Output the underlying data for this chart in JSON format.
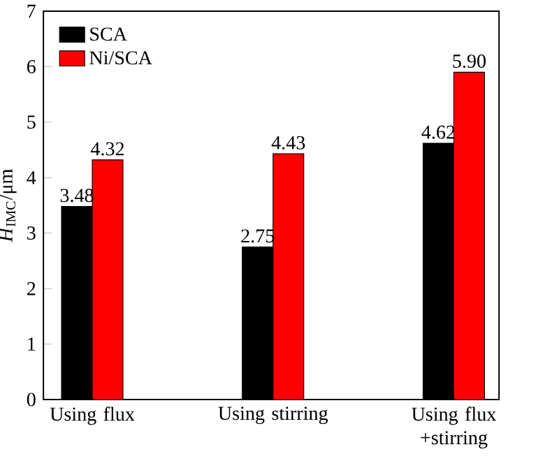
{
  "chart_data": {
    "type": "bar",
    "ylabel": "*H*$_{IMC}$/μm",
    "categories": [
      "Using flux",
      "Using stirring",
      "Using flux +stirring"
    ],
    "series": [
      {
        "name": "SCA",
        "color": "#000000",
        "values": [
          3.48,
          2.75,
          4.62
        ],
        "value_labels": [
          "3.48",
          "2.75",
          "4.62"
        ]
      },
      {
        "name": "Ni/SCA",
        "color": "#ff0000",
        "values": [
          4.32,
          4.43,
          5.9
        ],
        "value_labels": [
          "4.32",
          "4.43",
          "5.90"
        ]
      }
    ],
    "ylim": [
      0,
      7
    ],
    "yticks": [
      0,
      1,
      2,
      3,
      4,
      5,
      6,
      7
    ],
    "legend": "top left"
  }
}
